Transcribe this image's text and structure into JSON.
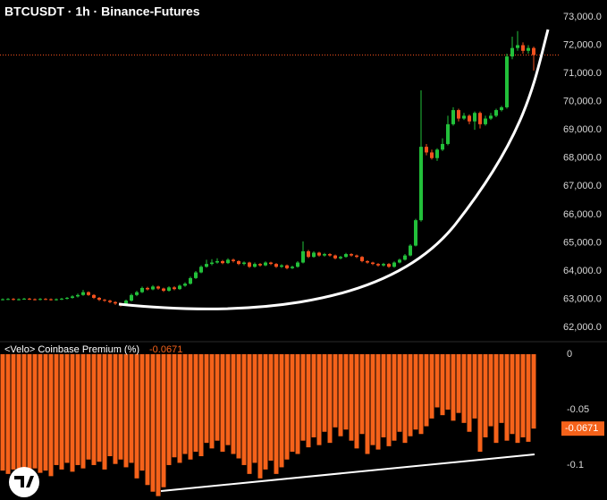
{
  "chart_data": [
    {
      "type": "candlestick",
      "title": "BTCUSDT · 1h · Binance-Futures",
      "color_up": "#22c03a",
      "color_down": "#f4511e",
      "ylim": [
        61560,
        73600
      ],
      "yticks": [
        {
          "value": 62000,
          "label": "62,000.0"
        },
        {
          "value": 63000,
          "label": "63,000.0"
        },
        {
          "value": 64000,
          "label": "64,000.0"
        },
        {
          "value": 65000,
          "label": "65,000.0"
        },
        {
          "value": 66000,
          "label": "66,000.0"
        },
        {
          "value": 67000,
          "label": "67,000.0"
        },
        {
          "value": 68000,
          "label": "68,000.0"
        },
        {
          "value": 69000,
          "label": "69,000.0"
        },
        {
          "value": 70000,
          "label": "70,000.0"
        },
        {
          "value": 71000,
          "label": "71,000.0"
        },
        {
          "value": 72000,
          "label": "72,000.0"
        },
        {
          "value": 73000,
          "label": "73,000.0"
        }
      ],
      "open": [
        62990,
        63000,
        63010,
        62990,
        63000,
        63020,
        63000,
        62990,
        63010,
        63000,
        62980,
        63000,
        63020,
        63050,
        63100,
        63150,
        63250,
        63150,
        63050,
        62980,
        62950,
        62900,
        62850,
        62800,
        62950,
        63150,
        63250,
        63400,
        63350,
        63450,
        63380,
        63300,
        63420,
        63360,
        63480,
        63550,
        63750,
        63950,
        64150,
        64250,
        64300,
        64350,
        64280,
        64400,
        64350,
        64250,
        64300,
        64150,
        64250,
        64200,
        64300,
        64250,
        64150,
        64200,
        64100,
        64150,
        64300,
        64700,
        64500,
        64650,
        64550,
        64600,
        64550,
        64450,
        64500,
        64600,
        64550,
        64500,
        64350,
        64300,
        64250,
        64200,
        64250,
        64150,
        64300,
        64400,
        64550,
        64900,
        65800,
        68400,
        68200,
        68000,
        68300,
        68500,
        69200,
        69700,
        69400,
        69500,
        69300,
        69600,
        69200,
        69400,
        69500,
        69700,
        69800,
        71600,
        71900,
        72000,
        71800,
        71900
      ],
      "high": [
        63030,
        63040,
        63040,
        63030,
        63050,
        63050,
        63030,
        63040,
        63040,
        63030,
        63030,
        63050,
        63080,
        63140,
        63200,
        63330,
        63280,
        63180,
        63080,
        63010,
        62980,
        62930,
        62880,
        62990,
        63200,
        63300,
        63450,
        63440,
        63500,
        63480,
        63410,
        63460,
        63460,
        63520,
        63600,
        63800,
        64000,
        64200,
        64400,
        64420,
        64450,
        64390,
        64450,
        64440,
        64380,
        64340,
        64330,
        64300,
        64280,
        64340,
        64330,
        64280,
        64240,
        64230,
        64190,
        64350,
        65050,
        64750,
        64700,
        64680,
        64640,
        64630,
        64580,
        64540,
        64640,
        64630,
        64580,
        64530,
        64380,
        64330,
        64280,
        64290,
        64280,
        64340,
        64440,
        64600,
        64950,
        65850,
        70400,
        68500,
        68300,
        68350,
        68700,
        69500,
        69800,
        69750,
        69600,
        69550,
        69650,
        69650,
        69500,
        69600,
        69750,
        69850,
        71700,
        72300,
        72500,
        72100,
        72000,
        71950
      ],
      "low": [
        62960,
        62970,
        62960,
        62960,
        62980,
        62970,
        62960,
        62960,
        62970,
        62950,
        62950,
        62970,
        62990,
        63020,
        63060,
        63120,
        63120,
        63010,
        62940,
        62910,
        62860,
        62800,
        62740,
        62770,
        62920,
        63110,
        63220,
        63310,
        63320,
        63340,
        63260,
        63270,
        63320,
        63330,
        63440,
        63520,
        63720,
        63920,
        64120,
        64200,
        64260,
        64240,
        64250,
        64300,
        64210,
        64200,
        64110,
        64120,
        64160,
        64170,
        64210,
        64110,
        64110,
        64060,
        64070,
        64120,
        64270,
        64460,
        64470,
        64510,
        64510,
        64510,
        64410,
        64410,
        64470,
        64510,
        64460,
        64310,
        64260,
        64210,
        64160,
        64160,
        64110,
        64120,
        64270,
        64370,
        64520,
        64870,
        65750,
        68100,
        67950,
        67900,
        68250,
        68450,
        69150,
        69300,
        69350,
        69200,
        69000,
        69050,
        69150,
        69350,
        69450,
        69650,
        69750,
        71500,
        71800,
        71700,
        71700,
        71100
      ],
      "close": [
        63000,
        63010,
        62990,
        63000,
        63020,
        63000,
        62990,
        63010,
        63000,
        62980,
        63000,
        63020,
        63050,
        63100,
        63150,
        63250,
        63150,
        63050,
        62980,
        62950,
        62900,
        62850,
        62800,
        62950,
        63150,
        63250,
        63400,
        63350,
        63450,
        63380,
        63300,
        63420,
        63360,
        63480,
        63550,
        63750,
        63950,
        64150,
        64250,
        64300,
        64350,
        64280,
        64400,
        64350,
        64250,
        64300,
        64150,
        64250,
        64200,
        64300,
        64250,
        64150,
        64200,
        64100,
        64150,
        64300,
        64700,
        64500,
        64650,
        64550,
        64600,
        64550,
        64450,
        64500,
        64600,
        64550,
        64500,
        64350,
        64300,
        64250,
        64200,
        64250,
        64150,
        64300,
        64400,
        64550,
        64900,
        65800,
        68400,
        68200,
        68000,
        68300,
        68500,
        69200,
        69700,
        69400,
        69500,
        69300,
        69600,
        69200,
        69400,
        69500,
        69700,
        69800,
        71600,
        71900,
        72000,
        71800,
        71900,
        71650
      ]
    },
    {
      "type": "bar",
      "title": "<Velo> Coinbase Premium (%)",
      "color": "#f5621a",
      "ylim": [
        -0.1315,
        0.0032
      ],
      "yticks": [
        0,
        -0.05,
        -0.1
      ],
      "values": [
        -0.105,
        -0.108,
        -0.104,
        -0.11,
        -0.106,
        -0.109,
        -0.103,
        -0.107,
        -0.105,
        -0.11,
        -0.1,
        -0.104,
        -0.098,
        -0.106,
        -0.1,
        -0.103,
        -0.095,
        -0.1,
        -0.097,
        -0.104,
        -0.092,
        -0.099,
        -0.095,
        -0.102,
        -0.098,
        -0.112,
        -0.105,
        -0.118,
        -0.124,
        -0.128,
        -0.12,
        -0.1,
        -0.093,
        -0.098,
        -0.09,
        -0.095,
        -0.088,
        -0.092,
        -0.08,
        -0.085,
        -0.078,
        -0.088,
        -0.082,
        -0.09,
        -0.094,
        -0.1,
        -0.108,
        -0.098,
        -0.112,
        -0.104,
        -0.096,
        -0.108,
        -0.102,
        -0.095,
        -0.088,
        -0.09,
        -0.078,
        -0.084,
        -0.075,
        -0.082,
        -0.07,
        -0.08,
        -0.066,
        -0.074,
        -0.068,
        -0.078,
        -0.085,
        -0.072,
        -0.09,
        -0.082,
        -0.086,
        -0.075,
        -0.083,
        -0.078,
        -0.07,
        -0.08,
        -0.074,
        -0.068,
        -0.072,
        -0.065,
        -0.058,
        -0.048,
        -0.055,
        -0.05,
        -0.06,
        -0.053,
        -0.062,
        -0.07,
        -0.058,
        -0.088,
        -0.075,
        -0.065,
        -0.08,
        -0.062,
        -0.078,
        -0.072,
        -0.08,
        -0.075,
        -0.079,
        -0.0671
      ]
    }
  ]
}
